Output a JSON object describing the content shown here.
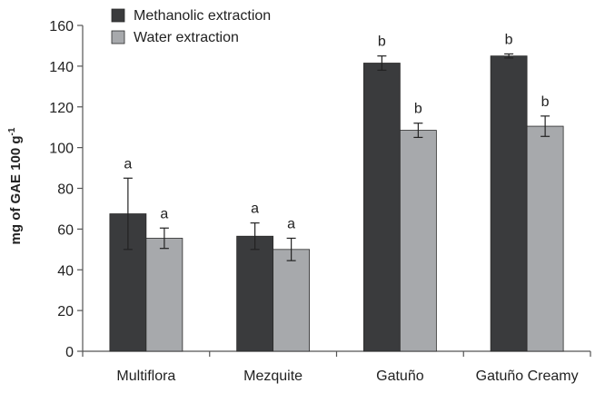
{
  "chart_data": {
    "type": "bar",
    "categories": [
      "Multiflora",
      "Mezquite",
      "Gatuño",
      "Gatuño Creamy"
    ],
    "series": [
      {
        "name": "Methanolic extraction",
        "color": "#3a3b3d",
        "values": [
          67.5,
          56.5,
          141.5,
          145.0
        ],
        "error": [
          17.5,
          6.5,
          3.5,
          1.0
        ],
        "labels": [
          "a",
          "a",
          "b",
          "b"
        ]
      },
      {
        "name": "Water extraction",
        "color": "#a7a9ac",
        "values": [
          55.5,
          50.0,
          108.5,
          110.5
        ],
        "error": [
          5.0,
          5.5,
          3.5,
          5.0
        ],
        "labels": [
          "a",
          "a",
          "b",
          "b"
        ]
      }
    ],
    "ylabel": "mg of GAE 100 g",
    "ylabel_superscript": "-1",
    "xlabel": "",
    "ylim": [
      0,
      160
    ],
    "yticks": [
      0,
      20,
      40,
      60,
      80,
      100,
      120,
      140,
      160
    ],
    "grid": false,
    "legend_position": "top-left"
  }
}
